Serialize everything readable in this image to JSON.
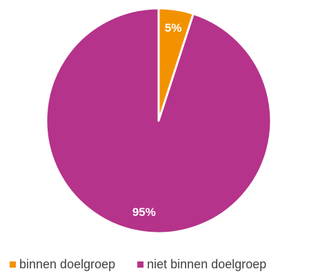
{
  "chart_data": {
    "type": "pie",
    "categories": [
      "binnen doelgroep",
      "niet binnen doelgroep"
    ],
    "values": [
      5,
      95
    ],
    "value_labels": [
      "5%",
      "95%"
    ],
    "colors": [
      "#f39200",
      "#b5338a"
    ],
    "legend": "bottom"
  }
}
